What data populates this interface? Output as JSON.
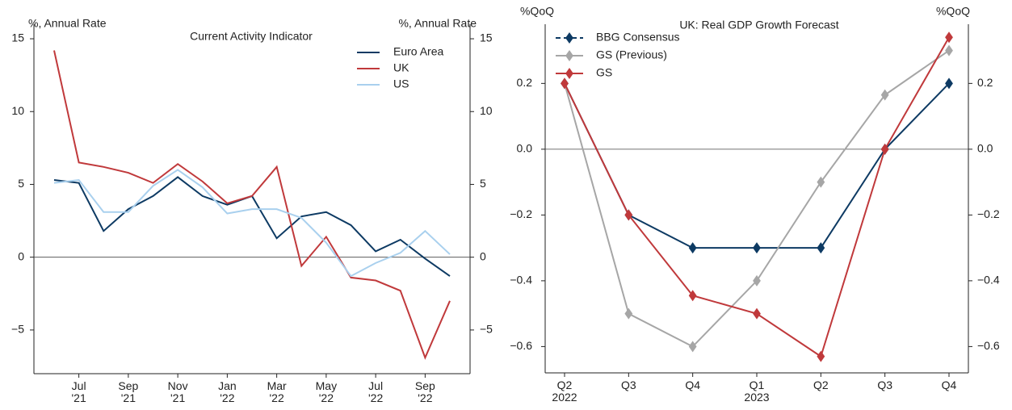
{
  "chart_data": [
    {
      "type": "line",
      "title": "Current Activity Indicator",
      "ylabel": "%, Annual Rate",
      "ylabel_right": "%, Annual Rate",
      "categories": [
        null,
        "Jul\n'21",
        null,
        "Sep\n'21",
        null,
        "Nov\n'21",
        null,
        "Jan\n'22",
        null,
        "Mar\n'22",
        null,
        "May\n'22",
        null,
        "Jul\n'22",
        null,
        "Sep\n'22",
        null
      ],
      "series": [
        {
          "name": "Euro Area",
          "color": "#0d3a63",
          "values": [
            5.3,
            5.1,
            1.8,
            3.3,
            4.2,
            5.5,
            4.2,
            3.6,
            4.2,
            1.3,
            2.8,
            3.1,
            2.2,
            0.4,
            1.2,
            -0.1,
            -1.3
          ]
        },
        {
          "name": "UK",
          "color": "#c0393b",
          "values": [
            14.2,
            6.5,
            6.2,
            5.8,
            5.1,
            6.4,
            5.2,
            3.7,
            4.2,
            6.2,
            -0.6,
            1.4,
            -1.4,
            -1.6,
            -2.3,
            -6.9,
            -3.0
          ]
        },
        {
          "name": "US",
          "color": "#a9d0ee",
          "values": [
            5.1,
            5.3,
            3.1,
            3.1,
            4.9,
            6.0,
            4.8,
            3.0,
            3.3,
            3.3,
            2.7,
            1.0,
            -1.3,
            -0.4,
            0.3,
            1.8,
            0.2
          ]
        }
      ],
      "ylim": [
        -8,
        16
      ],
      "yticks": [
        {
          "value": -5,
          "label": "−5"
        },
        0,
        5,
        10,
        15
      ],
      "zero_line": true
    },
    {
      "type": "line",
      "title": "UK: Real GDP Growth Forecast",
      "ylabel": "%QoQ",
      "ylabel_right": "%QoQ",
      "marker": "diamond",
      "categories": [
        "Q2\n2022",
        "Q3",
        "Q4",
        "Q1\n2023",
        "Q2",
        "Q3",
        "Q4"
      ],
      "series": [
        {
          "name": "BBG Consensus",
          "color": "#0d3a63",
          "legend_style": "dashed",
          "values": [
            0.2,
            -0.2,
            -0.3,
            -0.3,
            -0.3,
            0.0,
            0.2
          ]
        },
        {
          "name": "GS (Previous)",
          "color": "#a6a6a6",
          "values": [
            0.2,
            -0.5,
            -0.6,
            -0.4,
            -0.1,
            0.165,
            0.3
          ]
        },
        {
          "name": "GS",
          "color": "#c0393b",
          "values": [
            0.2,
            -0.2,
            -0.445,
            -0.5,
            -0.63,
            0.0,
            0.34
          ]
        }
      ],
      "ylim": [
        -0.68,
        0.38
      ],
      "yticks": [
        0.2,
        {
          "value": 0.0,
          "label": "0.0"
        },
        {
          "value": -0.2,
          "label": "−0.2"
        },
        {
          "value": -0.4,
          "label": "−0.4"
        },
        {
          "value": -0.6,
          "label": "−0.6"
        }
      ],
      "zero_line": true
    }
  ]
}
